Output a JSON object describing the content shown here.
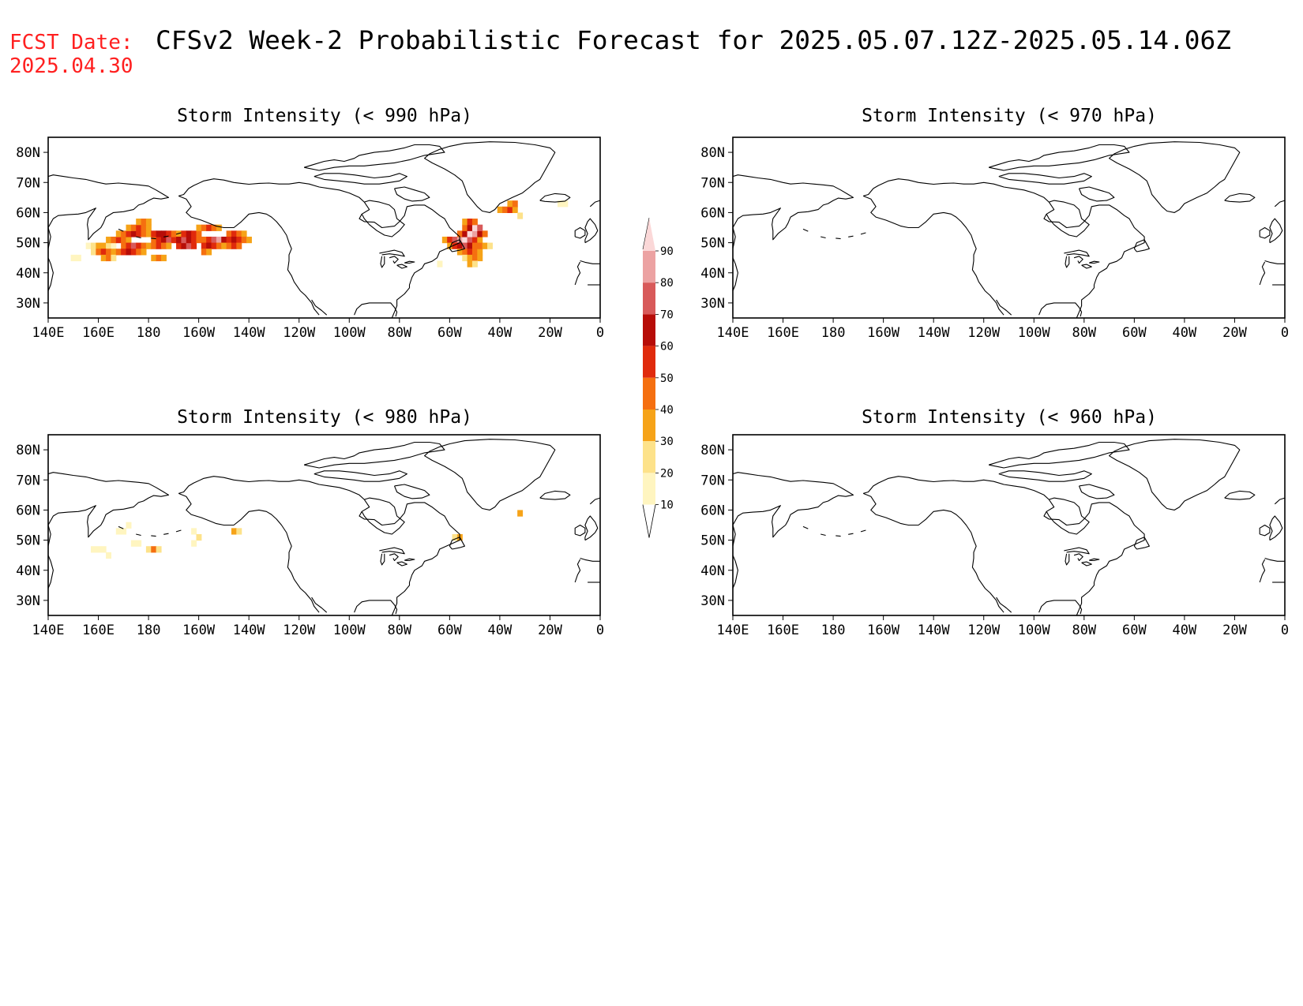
{
  "header": {
    "fcst_label": "FCST Date:",
    "fcst_date": "2025.04.30",
    "title": "CFSv2 Week-2 Probabilistic Forecast for 2025.05.07.12Z-2025.05.14.06Z",
    "fcst_color": "#ff2020"
  },
  "axes": {
    "lon_labels": [
      "140E",
      "160E",
      "180",
      "160W",
      "140W",
      "120W",
      "100W",
      "80W",
      "60W",
      "40W",
      "20W",
      "0"
    ],
    "lon_values": [
      140,
      160,
      180,
      200,
      220,
      240,
      260,
      280,
      300,
      320,
      340,
      360
    ],
    "lat_labels": [
      "80N",
      "70N",
      "60N",
      "50N",
      "40N",
      "30N"
    ],
    "lat_values": [
      80,
      70,
      60,
      50,
      40,
      30
    ],
    "lon_range": [
      140,
      360
    ],
    "lat_range": [
      25,
      85
    ]
  },
  "colorbar": {
    "levels": [
      "10",
      "20",
      "30",
      "40",
      "50",
      "60",
      "70",
      "80",
      "90"
    ],
    "colors": [
      "#fff5c0",
      "#fde28a",
      "#f6a318",
      "#f56f10",
      "#e02a0c",
      "#b70d08",
      "#d85a5a",
      "#eca2a2",
      "#fbd8d8"
    ]
  },
  "panels": [
    {
      "title": "Storm Intensity (< 990 hPa)",
      "cells": [
        [
          156,
          49,
          1
        ],
        [
          158,
          49,
          2
        ],
        [
          160,
          49,
          3
        ],
        [
          162,
          49,
          3
        ],
        [
          164,
          49,
          2
        ],
        [
          166,
          49,
          1
        ],
        [
          158,
          47,
          2
        ],
        [
          160,
          47,
          4
        ],
        [
          162,
          47,
          5
        ],
        [
          164,
          47,
          4
        ],
        [
          166,
          47,
          3
        ],
        [
          162,
          45,
          3
        ],
        [
          164,
          45,
          4
        ],
        [
          166,
          45,
          2
        ],
        [
          164,
          51,
          3
        ],
        [
          166,
          51,
          4
        ],
        [
          168,
          51,
          5
        ],
        [
          170,
          51,
          4
        ],
        [
          172,
          51,
          3
        ],
        [
          168,
          53,
          3
        ],
        [
          170,
          53,
          4
        ],
        [
          172,
          53,
          5
        ],
        [
          174,
          53,
          6
        ],
        [
          176,
          53,
          5
        ],
        [
          178,
          53,
          4
        ],
        [
          180,
          53,
          3
        ],
        [
          170,
          49,
          4
        ],
        [
          172,
          49,
          5
        ],
        [
          174,
          49,
          7
        ],
        [
          176,
          49,
          5
        ],
        [
          178,
          49,
          4
        ],
        [
          180,
          49,
          3
        ],
        [
          168,
          47,
          4
        ],
        [
          170,
          47,
          5
        ],
        [
          172,
          47,
          6
        ],
        [
          174,
          47,
          5
        ],
        [
          176,
          47,
          4
        ],
        [
          178,
          47,
          3
        ],
        [
          172,
          55,
          3
        ],
        [
          174,
          55,
          4
        ],
        [
          176,
          55,
          5
        ],
        [
          178,
          55,
          4
        ],
        [
          180,
          55,
          3
        ],
        [
          176,
          57,
          3
        ],
        [
          178,
          57,
          4
        ],
        [
          180,
          57,
          3
        ],
        [
          182,
          51,
          4
        ],
        [
          184,
          51,
          5
        ],
        [
          186,
          51,
          6
        ],
        [
          188,
          51,
          7
        ],
        [
          190,
          51,
          5
        ],
        [
          182,
          53,
          5
        ],
        [
          184,
          53,
          6
        ],
        [
          186,
          53,
          6
        ],
        [
          188,
          53,
          5
        ],
        [
          190,
          53,
          4
        ],
        [
          192,
          53,
          3
        ],
        [
          182,
          49,
          4
        ],
        [
          184,
          49,
          5
        ],
        [
          186,
          49,
          4
        ],
        [
          188,
          49,
          3
        ],
        [
          182,
          45,
          3
        ],
        [
          184,
          45,
          4
        ],
        [
          186,
          45,
          3
        ],
        [
          192,
          49,
          5
        ],
        [
          194,
          49,
          6
        ],
        [
          196,
          49,
          7
        ],
        [
          198,
          49,
          5
        ],
        [
          192,
          51,
          6
        ],
        [
          194,
          51,
          7
        ],
        [
          196,
          51,
          6
        ],
        [
          198,
          51,
          5
        ],
        [
          200,
          51,
          4
        ],
        [
          194,
          53,
          5
        ],
        [
          196,
          53,
          6
        ],
        [
          198,
          53,
          5
        ],
        [
          200,
          53,
          4
        ],
        [
          202,
          51,
          4
        ],
        [
          204,
          51,
          5
        ],
        [
          206,
          51,
          7
        ],
        [
          208,
          51,
          8
        ],
        [
          210,
          51,
          6
        ],
        [
          202,
          49,
          5
        ],
        [
          204,
          49,
          6
        ],
        [
          206,
          49,
          5
        ],
        [
          208,
          49,
          4
        ],
        [
          210,
          49,
          3
        ],
        [
          200,
          55,
          3
        ],
        [
          202,
          55,
          4
        ],
        [
          204,
          55,
          5
        ],
        [
          206,
          55,
          4
        ],
        [
          208,
          55,
          3
        ],
        [
          202,
          47,
          4
        ],
        [
          204,
          47,
          3
        ],
        [
          212,
          53,
          4
        ],
        [
          214,
          53,
          5
        ],
        [
          216,
          53,
          4
        ],
        [
          218,
          53,
          3
        ],
        [
          212,
          51,
          5
        ],
        [
          214,
          51,
          6
        ],
        [
          216,
          51,
          5
        ],
        [
          218,
          51,
          4
        ],
        [
          220,
          51,
          3
        ],
        [
          212,
          49,
          4
        ],
        [
          214,
          49,
          5
        ],
        [
          216,
          49,
          4
        ],
        [
          150,
          45,
          1
        ],
        [
          152,
          45,
          1
        ],
        [
          298,
          51,
          3
        ],
        [
          300,
          51,
          5
        ],
        [
          302,
          51,
          7
        ],
        [
          304,
          51,
          8
        ],
        [
          306,
          51,
          9
        ],
        [
          308,
          51,
          7
        ],
        [
          310,
          51,
          5
        ],
        [
          312,
          51,
          3
        ],
        [
          300,
          49,
          3
        ],
        [
          302,
          49,
          5
        ],
        [
          304,
          49,
          6
        ],
        [
          306,
          49,
          7
        ],
        [
          308,
          49,
          6
        ],
        [
          310,
          49,
          4
        ],
        [
          304,
          47,
          3
        ],
        [
          306,
          47,
          4
        ],
        [
          308,
          47,
          5
        ],
        [
          310,
          47,
          4
        ],
        [
          312,
          47,
          3
        ],
        [
          306,
          45,
          2
        ],
        [
          308,
          45,
          3
        ],
        [
          310,
          45,
          4
        ],
        [
          312,
          45,
          3
        ],
        [
          308,
          43,
          3
        ],
        [
          310,
          43,
          2
        ],
        [
          304,
          53,
          4
        ],
        [
          306,
          53,
          6
        ],
        [
          308,
          53,
          9
        ],
        [
          310,
          53,
          8
        ],
        [
          312,
          53,
          6
        ],
        [
          314,
          53,
          4
        ],
        [
          306,
          55,
          4
        ],
        [
          308,
          55,
          6
        ],
        [
          310,
          55,
          9
        ],
        [
          312,
          55,
          7
        ],
        [
          306,
          57,
          3
        ],
        [
          308,
          57,
          5
        ],
        [
          310,
          57,
          4
        ],
        [
          312,
          49,
          4
        ],
        [
          314,
          49,
          3
        ],
        [
          316,
          49,
          2
        ],
        [
          296,
          43,
          1
        ],
        [
          320,
          61,
          3
        ],
        [
          322,
          61,
          4
        ],
        [
          324,
          61,
          5
        ],
        [
          326,
          61,
          3
        ],
        [
          324,
          63,
          3
        ],
        [
          326,
          63,
          4
        ],
        [
          328,
          59,
          2
        ],
        [
          344,
          63,
          1
        ],
        [
          346,
          63,
          1
        ]
      ]
    },
    {
      "title": "Storm Intensity (< 970 hPa)",
      "cells": []
    },
    {
      "title": "Storm Intensity (< 980 hPa)",
      "cells": [
        [
          168,
          53,
          1
        ],
        [
          170,
          53,
          1
        ],
        [
          172,
          55,
          1
        ],
        [
          174,
          49,
          1
        ],
        [
          176,
          49,
          1
        ],
        [
          180,
          47,
          2
        ],
        [
          182,
          47,
          4
        ],
        [
          184,
          47,
          2
        ],
        [
          158,
          47,
          1
        ],
        [
          160,
          47,
          1
        ],
        [
          162,
          47,
          1
        ],
        [
          164,
          45,
          1
        ],
        [
          198,
          53,
          1
        ],
        [
          200,
          51,
          2
        ],
        [
          198,
          49,
          1
        ],
        [
          214,
          53,
          3
        ],
        [
          216,
          53,
          2
        ],
        [
          302,
          51,
          2
        ],
        [
          304,
          51,
          3
        ],
        [
          328,
          59,
          3
        ]
      ]
    },
    {
      "title": "Storm Intensity (< 960 hPa)",
      "cells": []
    }
  ]
}
